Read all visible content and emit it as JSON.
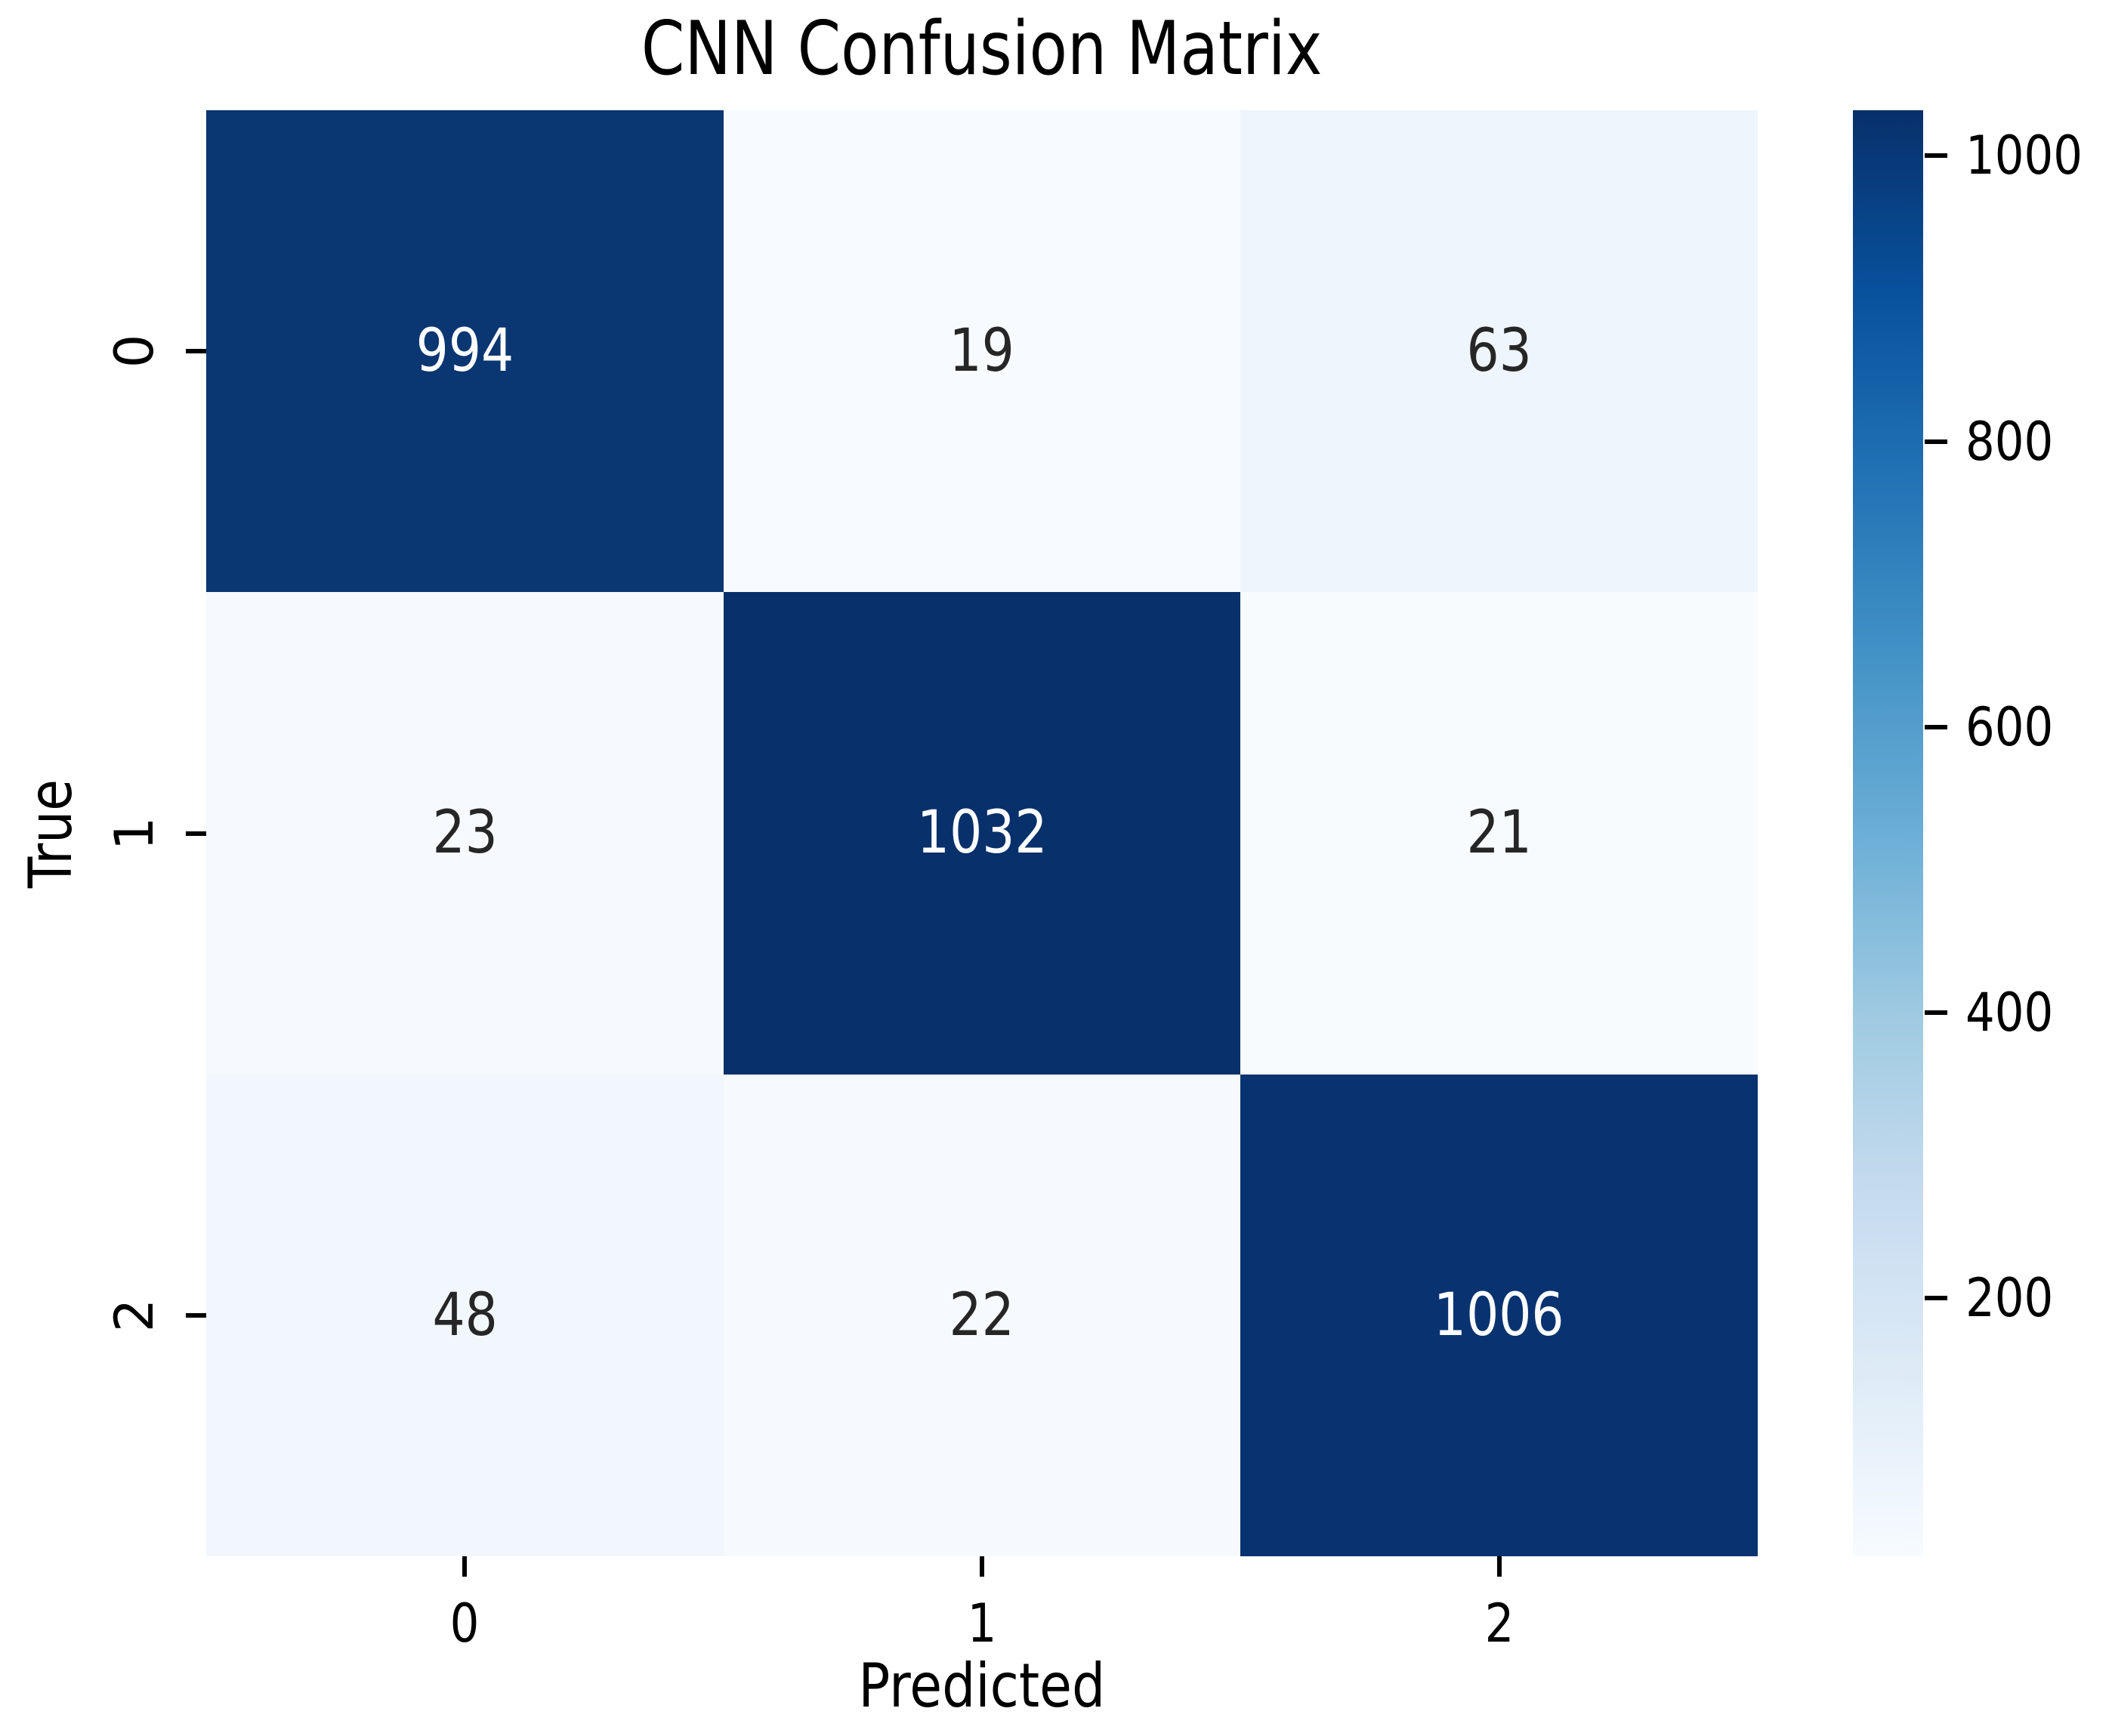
{
  "colors": {
    "background": "#ffffff",
    "axis_text": "#000000",
    "annot_on_dark": "#ffffff",
    "annot_on_light": "#262626"
  },
  "chart_data": {
    "type": "heatmap",
    "title": "CNN Confusion Matrix",
    "xlabel": "Predicted",
    "ylabel": "True",
    "x_ticklabels": [
      "0",
      "1",
      "2"
    ],
    "y_ticklabels": [
      "0",
      "1",
      "2"
    ],
    "matrix": [
      [
        994,
        19,
        63
      ],
      [
        23,
        1032,
        21
      ],
      [
        48,
        22,
        1006
      ]
    ],
    "cell_colors": [
      [
        "#0a3672",
        "#f7fbff",
        "#eef5fc"
      ],
      [
        "#f6fafe",
        "#08306b",
        "#f7fbfe"
      ],
      [
        "#f1f7fd",
        "#f6fafe",
        "#093370"
      ]
    ],
    "cell_text_colors": [
      [
        "#ffffff",
        "#262626",
        "#262626"
      ],
      [
        "#262626",
        "#ffffff",
        "#262626"
      ],
      [
        "#262626",
        "#262626",
        "#ffffff"
      ]
    ],
    "colormap": "Blues",
    "grid": false,
    "colorbar": {
      "position": "right",
      "vmin": 19,
      "vmax": 1032,
      "tick_values": [
        1000,
        800,
        600,
        400,
        200
      ],
      "tick_labels": [
        "1000",
        "800",
        "600",
        "400",
        "200"
      ],
      "gradient_top_to_bottom": [
        "#08306b",
        "#08519c",
        "#2171b5",
        "#4292c6",
        "#6baed6",
        "#9ecae1",
        "#c6dbef",
        "#deebf7",
        "#f7fbff"
      ]
    }
  }
}
